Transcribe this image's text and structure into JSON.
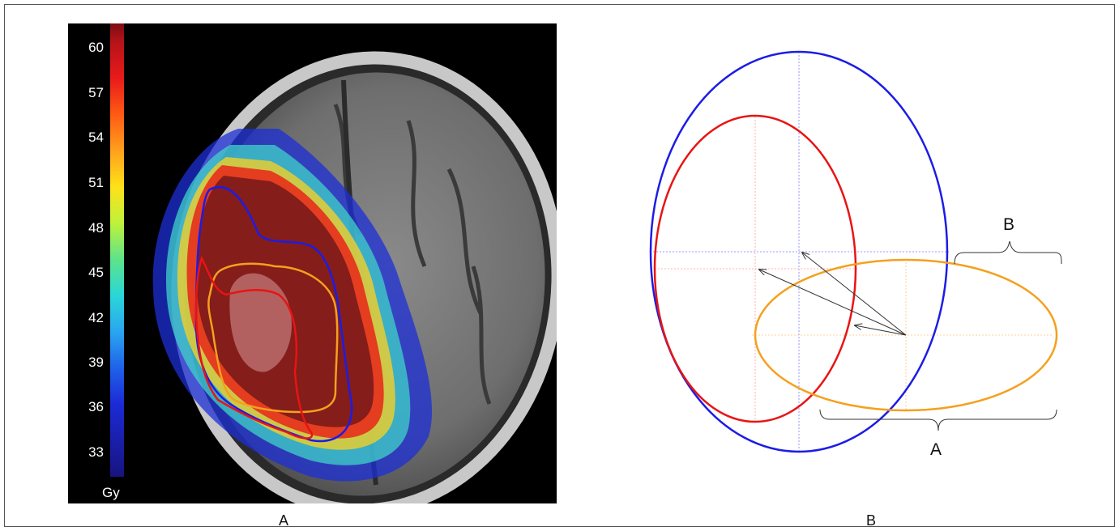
{
  "panel_a": {
    "colorbar": {
      "ticks": [
        "60",
        "57",
        "54",
        "51",
        "48",
        "45",
        "42",
        "39",
        "36",
        "33"
      ],
      "unit": "Gy"
    },
    "caption": "A"
  },
  "panel_b": {
    "caption": "B",
    "bracket_labels": {
      "top": "B",
      "bottom": "A"
    }
  },
  "colors": {
    "blue": "#1c1ce6",
    "red": "#e81414",
    "orange": "#f5a01e",
    "arrow": "#333333"
  }
}
